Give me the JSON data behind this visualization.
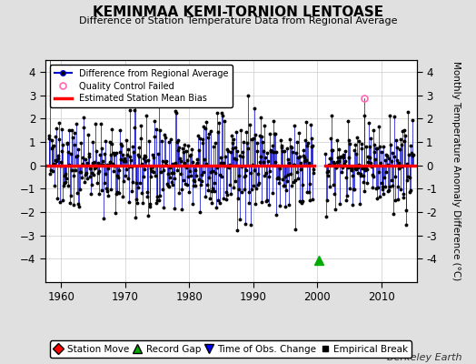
{
  "title": "KEMINMAA KEMI-TORNION LENTOASE",
  "subtitle": "Difference of Station Temperature Data from Regional Average",
  "ylabel": "Monthly Temperature Anomaly Difference (°C)",
  "xlabel_watermark": "Berkeley Earth",
  "xlim": [
    1957.5,
    2015.5
  ],
  "ylim": [
    -5,
    4.5
  ],
  "yticks": [
    -4,
    -3,
    -2,
    -1,
    0,
    1,
    2,
    3,
    4
  ],
  "xticks": [
    1960,
    1970,
    1980,
    1990,
    2000,
    2010
  ],
  "mean_bias": 0.0,
  "gap_start": 1999.5,
  "gap_end": 2001.2,
  "record_gap_x": 2000.2,
  "record_gap_y": -4.05,
  "qc_fail_x": 2007.3,
  "qc_fail_y": 2.85,
  "line_color": "#0000CC",
  "dot_color": "#000000",
  "bias_color": "#FF0000",
  "qc_color": "#FF69B4",
  "background_color": "#E0E0E0",
  "plot_bg_color": "#FFFFFF",
  "seed": 137
}
